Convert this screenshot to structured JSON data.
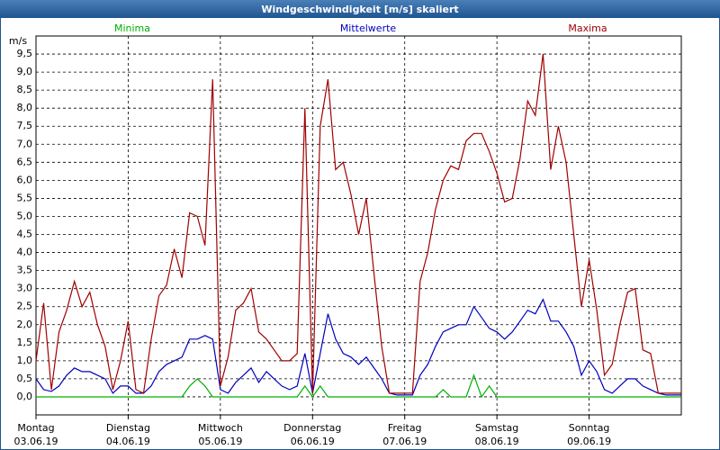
{
  "chart_data": {
    "type": "line",
    "title": "Windgeschwindigkeit [m/s] skaliert",
    "y_label": "m/s",
    "x": [
      0,
      2,
      4,
      6,
      8,
      10,
      12,
      14,
      16,
      18,
      20,
      22,
      24,
      26,
      28,
      30,
      32,
      34,
      36,
      38,
      40,
      42,
      44,
      46,
      48,
      50,
      52,
      54,
      56,
      58,
      60,
      62,
      64,
      66,
      68,
      70,
      72,
      74,
      76,
      78,
      80,
      82,
      84,
      86,
      88,
      90,
      92,
      94,
      96,
      98,
      100,
      102,
      104,
      106,
      108,
      110,
      112,
      114,
      116,
      118,
      120,
      122,
      124,
      126,
      128,
      130,
      132,
      134,
      136,
      138,
      140,
      142,
      144,
      146,
      148,
      150,
      152,
      154,
      156,
      158,
      160,
      162,
      164,
      166,
      168
    ],
    "xlim": [
      0,
      168
    ],
    "xticks": [
      {
        "value": 0,
        "label": "Montag 03.06.19"
      },
      {
        "value": 24,
        "label": "Dienstag 04.06.19"
      },
      {
        "value": 48,
        "label": "Mittwoch 05.06.19"
      },
      {
        "value": 72,
        "label": "Donnerstag 06.06.19"
      },
      {
        "value": 96,
        "label": "Freitag 07.06.19"
      },
      {
        "value": 120,
        "label": "Samstag 08.06.19"
      },
      {
        "value": 144,
        "label": "Sonntag 09.06.19"
      }
    ],
    "ylim": [
      -0.5,
      10
    ],
    "yticks": [
      {
        "value": 0,
        "label": "0,0"
      },
      {
        "value": 0.5,
        "label": "0,5"
      },
      {
        "value": 1,
        "label": "1,0"
      },
      {
        "value": 1.5,
        "label": "1,5"
      },
      {
        "value": 2,
        "label": "2,0"
      },
      {
        "value": 2.5,
        "label": "2,5"
      },
      {
        "value": 3,
        "label": "3,0"
      },
      {
        "value": 3.5,
        "label": "3,5"
      },
      {
        "value": 4,
        "label": "4,0"
      },
      {
        "value": 4.5,
        "label": "4,5"
      },
      {
        "value": 5,
        "label": "5,0"
      },
      {
        "value": 5.5,
        "label": "5,5"
      },
      {
        "value": 6,
        "label": "6,0"
      },
      {
        "value": 6.5,
        "label": "6,5"
      },
      {
        "value": 7,
        "label": "7,0"
      },
      {
        "value": 7.5,
        "label": "7,5"
      },
      {
        "value": 8,
        "label": "8,0"
      },
      {
        "value": 8.5,
        "label": "8,5"
      },
      {
        "value": 9,
        "label": "9,0"
      },
      {
        "value": 9.5,
        "label": "9,5"
      }
    ],
    "grid": true,
    "series": [
      {
        "name": "Minima",
        "color": "#00b000",
        "values": [
          0,
          0,
          0,
          0,
          0,
          0,
          0,
          0,
          0,
          0,
          0,
          0,
          0,
          0,
          0,
          0,
          0,
          0,
          0,
          0,
          0.3,
          0.5,
          0.3,
          0,
          0,
          0,
          0,
          0,
          0,
          0,
          0,
          0,
          0,
          0,
          0,
          0.3,
          0,
          0.3,
          0,
          0,
          0,
          0,
          0,
          0,
          0,
          0,
          0,
          0,
          0,
          0,
          0,
          0,
          0,
          0.2,
          0,
          0,
          0,
          0.6,
          0,
          0.3,
          0,
          0,
          0,
          0,
          0,
          0,
          0,
          0,
          0,
          0,
          0,
          0,
          0,
          0,
          0,
          0,
          0,
          0,
          0,
          0,
          0,
          0,
          0,
          0,
          0
        ]
      },
      {
        "name": "Mittelwerte",
        "color": "#0000c0",
        "values": [
          0.5,
          0.2,
          0.15,
          0.3,
          0.6,
          0.8,
          0.7,
          0.7,
          0.6,
          0.5,
          0.1,
          0.3,
          0.3,
          0.1,
          0.1,
          0.3,
          0.7,
          0.9,
          1.0,
          1.1,
          1.6,
          1.6,
          1.7,
          1.6,
          0.2,
          0.1,
          0.4,
          0.6,
          0.8,
          0.4,
          0.7,
          0.5,
          0.3,
          0.2,
          0.3,
          1.2,
          0.1,
          1.2,
          2.3,
          1.6,
          1.2,
          1.1,
          0.9,
          1.1,
          0.8,
          0.5,
          0.1,
          0.05,
          0.05,
          0.05,
          0.6,
          0.9,
          1.4,
          1.8,
          1.9,
          2.0,
          2.0,
          2.5,
          2.2,
          1.9,
          1.8,
          1.6,
          1.8,
          2.1,
          2.4,
          2.3,
          2.7,
          2.1,
          2.1,
          1.8,
          1.4,
          0.6,
          1.0,
          0.7,
          0.2,
          0.1,
          0.3,
          0.5,
          0.5,
          0.3,
          0.2,
          0.1,
          0.05,
          0.05,
          0.05
        ]
      },
      {
        "name": "Maxima",
        "color": "#a00000",
        "values": [
          1.0,
          2.6,
          0.2,
          1.8,
          2.4,
          3.2,
          2.5,
          2.9,
          2.0,
          1.4,
          0.2,
          1.0,
          2.1,
          0.2,
          0.1,
          1.6,
          2.8,
          3.1,
          4.1,
          3.3,
          5.1,
          5.0,
          4.2,
          8.8,
          0.3,
          1.1,
          2.4,
          2.6,
          3.0,
          1.8,
          1.6,
          1.3,
          1.0,
          1.0,
          1.2,
          8.0,
          0.1,
          7.5,
          8.8,
          6.3,
          6.5,
          5.6,
          4.5,
          5.5,
          3.4,
          1.4,
          0.1,
          0.1,
          0.1,
          0.1,
          3.2,
          4.0,
          5.2,
          6.0,
          6.4,
          6.3,
          7.1,
          7.3,
          7.3,
          6.8,
          6.2,
          5.4,
          5.5,
          6.6,
          8.2,
          7.8,
          9.5,
          6.3,
          7.5,
          6.5,
          4.5,
          2.5,
          3.8,
          2.4,
          0.6,
          0.9,
          2.0,
          2.9,
          3.0,
          1.3,
          1.2,
          0.1,
          0.1,
          0.1,
          0.1
        ]
      }
    ]
  }
}
